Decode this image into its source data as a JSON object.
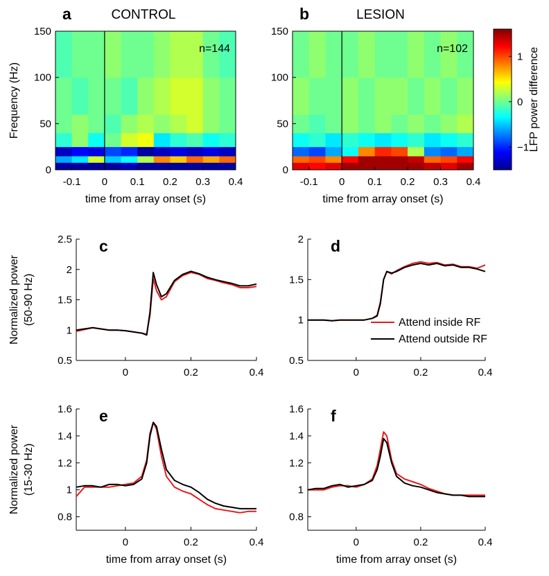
{
  "chart_data": [
    {
      "type": "heatmap",
      "panel": "a",
      "title": "CONTROL",
      "annotation": "n=144",
      "xlabel": "time from array onset (s)",
      "ylabel": "Frequency (Hz)",
      "xlim": [
        -0.15,
        0.4
      ],
      "ylim": [
        0,
        150
      ],
      "xticks": [
        -0.1,
        0,
        0.1,
        0.2,
        0.3,
        0.4
      ],
      "yticks": [
        0,
        50,
        100,
        150
      ],
      "vline": 0,
      "x_edges": [
        -0.15,
        -0.1,
        -0.05,
        0,
        0.05,
        0.1,
        0.15,
        0.2,
        0.25,
        0.3,
        0.35,
        0.4
      ],
      "y_edges": [
        0,
        8,
        15,
        25,
        40,
        60,
        100,
        150
      ],
      "z": [
        [
          -1.4,
          -1.4,
          -1.4,
          -1.4,
          -1.3,
          -1.4,
          -1.4,
          -1.4,
          -1.4,
          -1.4,
          -1.4
        ],
        [
          -0.6,
          -0.4,
          0.3,
          -0.5,
          -0.3,
          0.2,
          0.8,
          0.6,
          0.9,
          0.7,
          0.9
        ],
        [
          -1.3,
          -1.1,
          -1.2,
          -0.9,
          -1.0,
          -1.4,
          -1.3,
          -1.2,
          -1.3,
          -1.2,
          -1.3
        ],
        [
          -0.2,
          0.1,
          -0.3,
          0.0,
          0.3,
          0.4,
          -0.4,
          -0.2,
          -0.1,
          -0.3,
          -0.2
        ],
        [
          0.0,
          0.1,
          0.0,
          -0.1,
          0.1,
          0.2,
          0.1,
          0.2,
          0.3,
          0.1,
          0.0
        ],
        [
          0.0,
          -0.1,
          0.0,
          0.0,
          -0.1,
          0.1,
          0.2,
          0.3,
          0.3,
          0.1,
          0.0
        ],
        [
          -0.1,
          0.0,
          0.0,
          0.1,
          0.0,
          0.0,
          0.1,
          0.2,
          0.2,
          0.0,
          -0.1
        ]
      ]
    },
    {
      "type": "heatmap",
      "panel": "b",
      "title": "LESION",
      "annotation": "n=102",
      "xlabel": "time from array onset (s)",
      "xlim": [
        -0.15,
        0.4
      ],
      "ylim": [
        0,
        150
      ],
      "xticks": [
        -0.1,
        0,
        0.1,
        0.2,
        0.3,
        0.4
      ],
      "yticks": [
        0,
        50,
        100,
        150
      ],
      "vline": 0,
      "x_edges": [
        -0.15,
        -0.1,
        -0.05,
        0,
        0.05,
        0.1,
        0.15,
        0.2,
        0.25,
        0.3,
        0.35,
        0.4
      ],
      "y_edges": [
        0,
        8,
        15,
        25,
        40,
        60,
        100,
        150
      ],
      "z": [
        [
          1.3,
          1.2,
          1.3,
          1.5,
          1.5,
          1.5,
          1.5,
          1.5,
          1.4,
          1.3,
          1.5
        ],
        [
          0.9,
          1.0,
          0.8,
          1.2,
          1.5,
          1.5,
          1.5,
          1.4,
          0.9,
          1.0,
          1.2
        ],
        [
          -0.8,
          -0.9,
          -0.6,
          -0.3,
          0.8,
          1.1,
          1.0,
          0.2,
          -0.7,
          -0.8,
          -0.6
        ],
        [
          -0.3,
          -0.2,
          -0.4,
          -0.2,
          -0.3,
          -0.4,
          -0.3,
          -0.2,
          -0.4,
          -0.3,
          -0.2
        ],
        [
          0.0,
          -0.1,
          0.0,
          0.1,
          0.0,
          0.1,
          0.0,
          0.1,
          0.0,
          0.1,
          0.2
        ],
        [
          0.1,
          0.0,
          0.0,
          0.1,
          0.0,
          0.1,
          0.1,
          0.0,
          0.1,
          0.0,
          0.1
        ],
        [
          0.0,
          0.1,
          0.0,
          0.0,
          0.1,
          0.0,
          0.0,
          0.1,
          0.0,
          0.1,
          0.0
        ]
      ]
    },
    {
      "type": "colorbar",
      "ylabel": "LFP power difference",
      "colormap": "jet",
      "ylim": [
        -1.5,
        1.6
      ],
      "yticks": [
        {
          "value": -1,
          "label": "−1"
        },
        0,
        1
      ]
    },
    {
      "type": "line",
      "panel": "c",
      "ylabel": [
        "Normalized power",
        "(50-90 Hz)"
      ],
      "xlim": [
        -0.15,
        0.4
      ],
      "ylim": [
        0.5,
        2.5
      ],
      "xticks": [
        0,
        0.2,
        0.4
      ],
      "yticks": [
        0.5,
        1,
        1.5,
        2,
        2.5
      ],
      "x": [
        -0.15,
        -0.125,
        -0.1,
        -0.075,
        -0.05,
        -0.025,
        0,
        0.025,
        0.05,
        0.065,
        0.075,
        0.085,
        0.095,
        0.11,
        0.125,
        0.15,
        0.175,
        0.2,
        0.225,
        0.25,
        0.275,
        0.3,
        0.325,
        0.35,
        0.375,
        0.4
      ],
      "series": [
        {
          "color": "#e8191c",
          "values": [
            0.98,
            1.01,
            1.04,
            1.02,
            1.0,
            1.0,
            0.99,
            0.97,
            0.95,
            0.93,
            1.25,
            1.85,
            1.65,
            1.5,
            1.55,
            1.8,
            1.9,
            1.95,
            1.92,
            1.85,
            1.82,
            1.78,
            1.75,
            1.7,
            1.7,
            1.72
          ]
        },
        {
          "color": "#000000",
          "values": [
            1.0,
            1.02,
            1.04,
            1.02,
            1.0,
            1.0,
            0.99,
            0.97,
            0.95,
            0.92,
            1.3,
            1.95,
            1.75,
            1.55,
            1.6,
            1.82,
            1.92,
            1.97,
            1.93,
            1.87,
            1.83,
            1.8,
            1.77,
            1.73,
            1.73,
            1.76
          ]
        }
      ]
    },
    {
      "type": "line",
      "panel": "d",
      "legend": "lower right",
      "xlim": [
        -0.15,
        0.4
      ],
      "ylim": [
        0.5,
        2
      ],
      "xticks": [
        0,
        0.2,
        0.4
      ],
      "yticks": [
        0.5,
        1,
        1.5,
        2
      ],
      "x": [
        -0.15,
        -0.125,
        -0.1,
        -0.075,
        -0.05,
        -0.025,
        0,
        0.025,
        0.05,
        0.065,
        0.075,
        0.085,
        0.095,
        0.11,
        0.125,
        0.15,
        0.175,
        0.2,
        0.225,
        0.25,
        0.275,
        0.3,
        0.325,
        0.35,
        0.375,
        0.4
      ],
      "series": [
        {
          "name": "Attend inside RF",
          "color": "#e8191c",
          "values": [
            1.0,
            1.0,
            1.0,
            0.99,
            1.0,
            1.0,
            1.0,
            1.0,
            1.02,
            1.06,
            1.22,
            1.5,
            1.6,
            1.57,
            1.61,
            1.66,
            1.7,
            1.72,
            1.7,
            1.71,
            1.68,
            1.69,
            1.66,
            1.66,
            1.64,
            1.68
          ]
        },
        {
          "name": "Attend outside RF",
          "color": "#000000",
          "values": [
            1.0,
            1.0,
            1.0,
            0.99,
            1.0,
            1.0,
            1.0,
            1.0,
            1.02,
            1.05,
            1.2,
            1.5,
            1.6,
            1.58,
            1.6,
            1.65,
            1.68,
            1.7,
            1.68,
            1.7,
            1.67,
            1.68,
            1.65,
            1.65,
            1.63,
            1.6
          ]
        }
      ]
    },
    {
      "type": "line",
      "panel": "e",
      "xlabel": "time from array onset (s)",
      "ylabel": [
        "Normalized power",
        "(15-30 Hz)"
      ],
      "xlim": [
        -0.15,
        0.4
      ],
      "ylim": [
        0.7,
        1.6
      ],
      "xticks": [
        0,
        0.2,
        0.4
      ],
      "yticks": [
        0.8,
        1,
        1.2,
        1.4,
        1.6
      ],
      "x": [
        -0.15,
        -0.125,
        -0.1,
        -0.075,
        -0.05,
        -0.025,
        0,
        0.025,
        0.05,
        0.065,
        0.075,
        0.085,
        0.095,
        0.11,
        0.125,
        0.15,
        0.175,
        0.2,
        0.225,
        0.25,
        0.275,
        0.3,
        0.325,
        0.35,
        0.375,
        0.4
      ],
      "series": [
        {
          "color": "#e8191c",
          "values": [
            0.95,
            1.02,
            1.02,
            1.02,
            1.02,
            1.03,
            1.04,
            1.05,
            1.1,
            1.22,
            1.42,
            1.5,
            1.45,
            1.25,
            1.1,
            1.02,
            0.99,
            0.97,
            0.93,
            0.89,
            0.86,
            0.85,
            0.84,
            0.83,
            0.84,
            0.84
          ]
        },
        {
          "color": "#000000",
          "values": [
            1.02,
            1.03,
            1.03,
            1.02,
            1.04,
            1.04,
            1.03,
            1.04,
            1.08,
            1.2,
            1.4,
            1.5,
            1.47,
            1.3,
            1.15,
            1.07,
            1.04,
            1.02,
            0.98,
            0.93,
            0.9,
            0.88,
            0.87,
            0.86,
            0.86,
            0.86
          ]
        }
      ]
    },
    {
      "type": "line",
      "panel": "f",
      "xlabel": "time from array onset (s)",
      "xlim": [
        -0.15,
        0.4
      ],
      "ylim": [
        0.7,
        1.6
      ],
      "xticks": [
        0,
        0.2,
        0.4
      ],
      "yticks": [
        0.8,
        1,
        1.2,
        1.4,
        1.6
      ],
      "x": [
        -0.15,
        -0.125,
        -0.1,
        -0.075,
        -0.05,
        -0.025,
        0,
        0.025,
        0.05,
        0.065,
        0.075,
        0.085,
        0.095,
        0.11,
        0.125,
        0.15,
        0.175,
        0.2,
        0.225,
        0.25,
        0.275,
        0.3,
        0.325,
        0.35,
        0.375,
        0.4
      ],
      "series": [
        {
          "color": "#e8191c",
          "values": [
            1.0,
            1.0,
            1.0,
            1.02,
            1.03,
            1.03,
            1.02,
            1.04,
            1.08,
            1.18,
            1.3,
            1.43,
            1.4,
            1.22,
            1.12,
            1.08,
            1.06,
            1.04,
            1.01,
            0.99,
            0.97,
            0.96,
            0.96,
            0.96,
            0.96,
            0.96
          ]
        },
        {
          "color": "#000000",
          "values": [
            1.0,
            1.01,
            1.01,
            1.03,
            1.04,
            1.02,
            1.03,
            1.04,
            1.07,
            1.15,
            1.25,
            1.38,
            1.35,
            1.2,
            1.1,
            1.05,
            1.03,
            1.02,
            1.0,
            0.98,
            0.97,
            0.96,
            0.96,
            0.95,
            0.95,
            0.95
          ]
        }
      ]
    }
  ]
}
